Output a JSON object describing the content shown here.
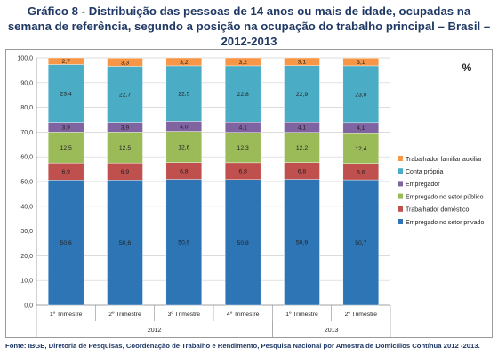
{
  "title": "Gráfico 8 - Distribuição das pessoas de 14 anos ou mais de idade, ocupadas na semana de referência, segundo a posição na ocupação do trabalho principal – Brasil – 2012-2013",
  "source": "Fonte: IBGE, Diretoria de Pesquisas, Coordenação de Trabalho e Rendimento, Pesquisa Nacional por Amostra de Domicílios Contínua 2012 -2013.",
  "chart_data": {
    "type": "bar",
    "stacked": true,
    "unit_label": "%",
    "categories": [
      "1º Trimestre",
      "2º Trimestre",
      "3º Trimestre",
      "4º Trimestre",
      "1º Trimestre",
      "2º Trimestre"
    ],
    "groups": [
      {
        "label": "2012",
        "start": 0,
        "end": 3
      },
      {
        "label": "2013",
        "start": 4,
        "end": 5
      }
    ],
    "ylim": [
      0,
      100
    ],
    "yticks": [
      "0,0",
      "10,0",
      "20,0",
      "30,0",
      "40,0",
      "50,0",
      "60,0",
      "70,0",
      "80,0",
      "90,0",
      "100,0"
    ],
    "grid": true,
    "legend_position": "right",
    "series": [
      {
        "name": "Empregado no setor privado",
        "color": "#2e75b6",
        "values": [
          50.6,
          50.6,
          50.9,
          50.8,
          50.9,
          50.7
        ],
        "labels": [
          "50,6",
          "50,6",
          "50,9",
          "50,8",
          "50,9",
          "50,7"
        ]
      },
      {
        "name": "Trabalhador doméstico",
        "color": "#c0504d",
        "values": [
          6.9,
          6.9,
          6.8,
          6.8,
          6.8,
          6.6
        ],
        "labels": [
          "6,9",
          "6,9",
          "6,8",
          "6,8",
          "6,8",
          "6,6"
        ]
      },
      {
        "name": "Empregado no setor público",
        "color": "#9bbb59",
        "values": [
          12.5,
          12.5,
          12.6,
          12.3,
          12.2,
          12.4
        ],
        "labels": [
          "12,5",
          "12,5",
          "12,6",
          "12,3",
          "12,2",
          "12,4"
        ]
      },
      {
        "name": "Empregador",
        "color": "#8064a2",
        "values": [
          3.9,
          3.9,
          4.0,
          4.1,
          4.1,
          4.1
        ],
        "labels": [
          "3,9",
          "3,9",
          "4,0",
          "4,1",
          "4,1",
          "4,1"
        ]
      },
      {
        "name": "Conta própria",
        "color": "#4bacc6",
        "values": [
          23.4,
          22.7,
          22.5,
          22.8,
          22.9,
          23.0
        ],
        "labels": [
          "23,4",
          "22,7",
          "22,5",
          "22,8",
          "22,9",
          "23,0"
        ]
      },
      {
        "name": "Trabalhador familiar auxiliar",
        "color": "#f79646",
        "values": [
          2.7,
          3.3,
          3.2,
          3.2,
          3.1,
          3.1
        ],
        "labels": [
          "2,7",
          "3,3",
          "3,2",
          "3,2",
          "3,1",
          "3,1"
        ]
      }
    ]
  }
}
